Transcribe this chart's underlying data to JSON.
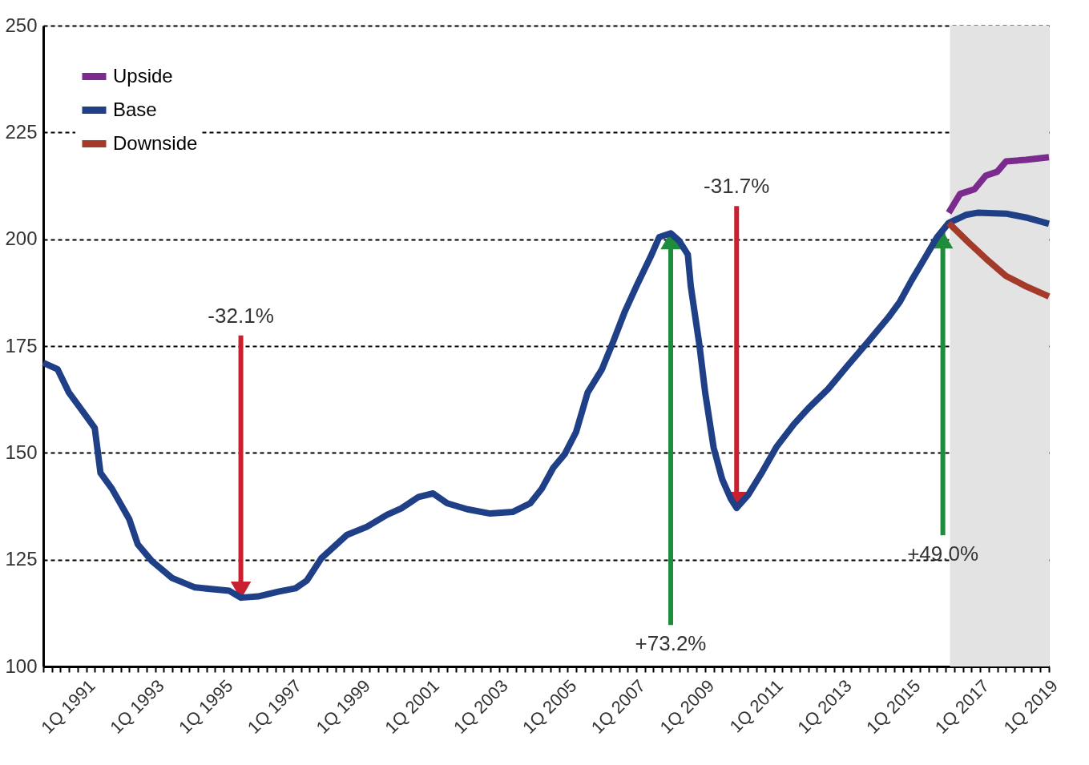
{
  "chart_data": {
    "type": "line",
    "xlim": [
      "1989-10",
      "2019-01"
    ],
    "ylim": [
      100,
      250
    ],
    "yticks": [
      100,
      125,
      150,
      175,
      200,
      225,
      250
    ],
    "xticks": [
      {
        "value": "1989-10",
        "label": null
      },
      {
        "value": "1990-01",
        "label": null
      },
      {
        "value": "1990-04",
        "label": null
      },
      {
        "value": "1990-07",
        "label": null
      },
      {
        "value": "1990-10",
        "label": null
      },
      {
        "value": "1991-01",
        "label": "1Q 1991"
      },
      {
        "value": "1991-04",
        "label": null
      },
      {
        "value": "1991-07",
        "label": null
      },
      {
        "value": "1991-10",
        "label": null
      },
      {
        "value": "1992-01",
        "label": null
      },
      {
        "value": "1992-04",
        "label": null
      },
      {
        "value": "1992-07",
        "label": null
      },
      {
        "value": "1992-10",
        "label": null
      },
      {
        "value": "1993-01",
        "label": "1Q 1993"
      },
      {
        "value": "1993-04",
        "label": null
      },
      {
        "value": "1993-07",
        "label": null
      },
      {
        "value": "1993-10",
        "label": null
      },
      {
        "value": "1994-01",
        "label": null
      },
      {
        "value": "1994-04",
        "label": null
      },
      {
        "value": "1994-07",
        "label": null
      },
      {
        "value": "1994-10",
        "label": null
      },
      {
        "value": "1995-01",
        "label": "1Q 1995"
      },
      {
        "value": "1995-04",
        "label": null
      },
      {
        "value": "1995-07",
        "label": null
      },
      {
        "value": "1995-10",
        "label": null
      },
      {
        "value": "1996-01",
        "label": null
      },
      {
        "value": "1996-04",
        "label": null
      },
      {
        "value": "1996-07",
        "label": null
      },
      {
        "value": "1996-10",
        "label": null
      },
      {
        "value": "1997-01",
        "label": "1Q 1997"
      },
      {
        "value": "1997-04",
        "label": null
      },
      {
        "value": "1997-07",
        "label": null
      },
      {
        "value": "1997-10",
        "label": null
      },
      {
        "value": "1998-01",
        "label": null
      },
      {
        "value": "1998-04",
        "label": null
      },
      {
        "value": "1998-07",
        "label": null
      },
      {
        "value": "1998-10",
        "label": null
      },
      {
        "value": "1999-01",
        "label": "1Q 1999"
      },
      {
        "value": "1999-04",
        "label": null
      },
      {
        "value": "1999-07",
        "label": null
      },
      {
        "value": "1999-10",
        "label": null
      },
      {
        "value": "2000-01",
        "label": null
      },
      {
        "value": "2000-04",
        "label": null
      },
      {
        "value": "2000-07",
        "label": null
      },
      {
        "value": "2000-10",
        "label": null
      },
      {
        "value": "2001-01",
        "label": "1Q 2001"
      },
      {
        "value": "2001-04",
        "label": null
      },
      {
        "value": "2001-07",
        "label": null
      },
      {
        "value": "2001-10",
        "label": null
      },
      {
        "value": "2002-01",
        "label": null
      },
      {
        "value": "2002-04",
        "label": null
      },
      {
        "value": "2002-07",
        "label": null
      },
      {
        "value": "2002-10",
        "label": null
      },
      {
        "value": "2003-01",
        "label": "1Q 2003"
      },
      {
        "value": "2003-04",
        "label": null
      },
      {
        "value": "2003-07",
        "label": null
      },
      {
        "value": "2003-10",
        "label": null
      },
      {
        "value": "2004-01",
        "label": null
      },
      {
        "value": "2004-04",
        "label": null
      },
      {
        "value": "2004-07",
        "label": null
      },
      {
        "value": "2004-10",
        "label": null
      },
      {
        "value": "2005-01",
        "label": "1Q 2005"
      },
      {
        "value": "2005-04",
        "label": null
      },
      {
        "value": "2005-07",
        "label": null
      },
      {
        "value": "2005-10",
        "label": null
      },
      {
        "value": "2006-01",
        "label": null
      },
      {
        "value": "2006-04",
        "label": null
      },
      {
        "value": "2006-07",
        "label": null
      },
      {
        "value": "2006-10",
        "label": null
      },
      {
        "value": "2007-01",
        "label": "1Q 2007"
      },
      {
        "value": "2007-04",
        "label": null
      },
      {
        "value": "2007-07",
        "label": null
      },
      {
        "value": "2007-10",
        "label": null
      },
      {
        "value": "2008-01",
        "label": null
      },
      {
        "value": "2008-04",
        "label": null
      },
      {
        "value": "2008-07",
        "label": null
      },
      {
        "value": "2008-10",
        "label": null
      },
      {
        "value": "2009-01",
        "label": "1Q 2009"
      },
      {
        "value": "2009-04",
        "label": null
      },
      {
        "value": "2009-07",
        "label": null
      },
      {
        "value": "2009-10",
        "label": null
      },
      {
        "value": "2010-01",
        "label": null
      },
      {
        "value": "2010-04",
        "label": null
      },
      {
        "value": "2010-07",
        "label": null
      },
      {
        "value": "2010-10",
        "label": null
      },
      {
        "value": "2011-01",
        "label": "1Q 2011"
      },
      {
        "value": "2011-04",
        "label": null
      },
      {
        "value": "2011-07",
        "label": null
      },
      {
        "value": "2011-10",
        "label": null
      },
      {
        "value": "2012-01",
        "label": null
      },
      {
        "value": "2012-04",
        "label": null
      },
      {
        "value": "2012-07",
        "label": null
      },
      {
        "value": "2012-10",
        "label": null
      },
      {
        "value": "2013-01",
        "label": "1Q 2013"
      },
      {
        "value": "2013-04",
        "label": null
      },
      {
        "value": "2013-07",
        "label": null
      },
      {
        "value": "2013-10",
        "label": null
      },
      {
        "value": "2014-01",
        "label": null
      },
      {
        "value": "2014-04",
        "label": null
      },
      {
        "value": "2014-07",
        "label": null
      },
      {
        "value": "2014-10",
        "label": null
      },
      {
        "value": "2015-01",
        "label": "1Q 2015"
      },
      {
        "value": "2015-04",
        "label": null
      },
      {
        "value": "2015-07",
        "label": null
      },
      {
        "value": "2015-10",
        "label": null
      },
      {
        "value": "2016-01",
        "label": null
      },
      {
        "value": "2016-04",
        "label": null
      },
      {
        "value": "2016-07",
        "label": null
      },
      {
        "value": "2016-10",
        "label": null
      },
      {
        "value": "2017-01",
        "label": "1Q 2017"
      },
      {
        "value": "2017-04",
        "label": null
      },
      {
        "value": "2017-07",
        "label": null
      },
      {
        "value": "2017-10",
        "label": null
      },
      {
        "value": "2018-01",
        "label": null
      },
      {
        "value": "2018-04",
        "label": null
      },
      {
        "value": "2018-07",
        "label": null
      },
      {
        "value": "2018-10",
        "label": null
      },
      {
        "value": "2019-01",
        "label": "1Q 2019"
      }
    ],
    "series": [
      {
        "name": "Upside",
        "color": "#7b2a8e",
        "x": [
          "2016-02",
          "2016-06",
          "2016-11",
          "2017-03",
          "2017-07",
          "2017-10",
          "2018-05",
          "2019-01"
        ],
        "values": [
          206.2,
          210.6,
          211.7,
          214.9,
          215.8,
          218.2,
          218.6,
          219.2
        ]
      },
      {
        "name": "Base",
        "color": "#1f3f87",
        "x": [
          "1989-10",
          "1990-03",
          "1990-07",
          "1990-12",
          "1991-04",
          "1991-06",
          "1991-10",
          "1992-04",
          "1992-07",
          "1992-12",
          "1993-07",
          "1994-03",
          "1995-03",
          "1995-07",
          "1996-01",
          "1996-08",
          "1997-02",
          "1997-06",
          "1997-11",
          "1998-08",
          "1999-03",
          "1999-10",
          "2000-03",
          "2000-09",
          "2001-02",
          "2001-07",
          "2002-02",
          "2002-10",
          "2003-06",
          "2003-12",
          "2004-04",
          "2004-08",
          "2004-12",
          "2005-04",
          "2005-08",
          "2006-01",
          "2006-05",
          "2006-09",
          "2007-01",
          "2007-06",
          "2007-09",
          "2008-01",
          "2008-04",
          "2008-07",
          "2008-08",
          "2008-11",
          "2009-01",
          "2009-04",
          "2009-07",
          "2009-10",
          "2009-12",
          "2010-04",
          "2010-09",
          "2011-02",
          "2011-08",
          "2012-01",
          "2012-08",
          "2013-03",
          "2013-10",
          "2014-05",
          "2014-09",
          "2015-01",
          "2015-06",
          "2015-10",
          "2016-02",
          "2016-08",
          "2016-12",
          "2017-10",
          "2018-05",
          "2019-01"
        ],
        "values": [
          171.1,
          169.6,
          164.1,
          159.5,
          155.8,
          145.3,
          141.6,
          134.5,
          128.6,
          124.6,
          120.7,
          118.5,
          117.7,
          116.1,
          116.4,
          117.5,
          118.3,
          120.1,
          125.3,
          130.8,
          132.7,
          135.5,
          137.0,
          139.7,
          140.5,
          138.2,
          136.8,
          135.8,
          136.2,
          138.2,
          141.6,
          146.5,
          149.7,
          154.9,
          164.1,
          169.6,
          176.1,
          183.1,
          189.0,
          195.9,
          200.5,
          201.4,
          199.6,
          196.4,
          189.0,
          175.2,
          164.1,
          151.2,
          143.8,
          139.2,
          137.1,
          140.1,
          145.6,
          151.5,
          156.7,
          160.4,
          165.0,
          170.6,
          176.1,
          181.7,
          185.4,
          190.3,
          195.9,
          200.5,
          203.8,
          205.7,
          206.2,
          206.0,
          205.1,
          203.6
        ]
      },
      {
        "name": "Downside",
        "color": "#a33a2a",
        "x": [
          "2016-02",
          "2016-09",
          "2017-03",
          "2017-10",
          "2018-05",
          "2019-01"
        ],
        "values": [
          203.8,
          199.2,
          195.5,
          191.4,
          189.0,
          186.6
        ]
      }
    ],
    "bands": [
      {
        "axis": "x",
        "from": "2016-02-15",
        "to": "2019-01",
        "color": "#e3e3e3"
      }
    ],
    "annotations": [
      {
        "text": "-32.1%",
        "x": "1995-07",
        "y": 116.1
      },
      {
        "text": "+73.2%",
        "x": "2008-01",
        "y": 201.4
      },
      {
        "text": "-31.7%",
        "x": "2009-12",
        "y": 137.1
      },
      {
        "text": "+49.0%",
        "x": "2015-12",
        "y": 201.6
      }
    ],
    "grid": "y",
    "legend": "top left",
    "line_style": "solid",
    "marker": "none"
  }
}
